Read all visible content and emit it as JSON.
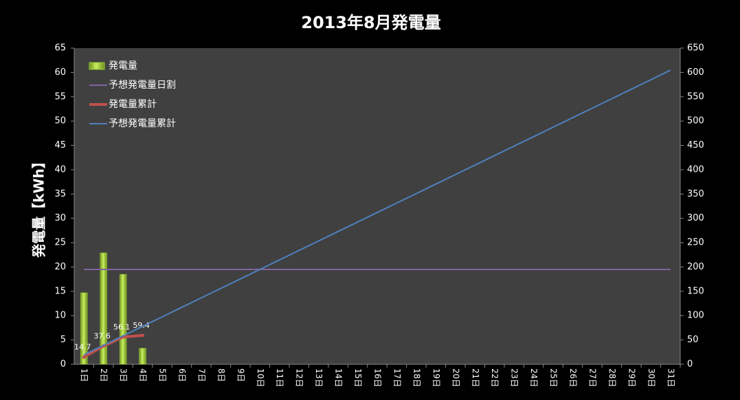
{
  "chart_data": {
    "type": "combo",
    "title": "2013年8月発電量",
    "y_label": "発電量【kWh】",
    "categories": [
      "1日",
      "2日",
      "3日",
      "4日",
      "5日",
      "6日",
      "7日",
      "8日",
      "9日",
      "10日",
      "11日",
      "12日",
      "13日",
      "14日",
      "15日",
      "16日",
      "17日",
      "18日",
      "19日",
      "20日",
      "21日",
      "22日",
      "23日",
      "24日",
      "25日",
      "26日",
      "27日",
      "28日",
      "29日",
      "30日",
      "31日"
    ],
    "series": [
      {
        "name": "発電量",
        "kind": "bar",
        "color": "#9acd32",
        "values": [
          14.7,
          22.9,
          18.5,
          3.3,
          null,
          null,
          null,
          null,
          null,
          null,
          null,
          null,
          null,
          null,
          null,
          null,
          null,
          null,
          null,
          null,
          null,
          null,
          null,
          null,
          null,
          null,
          null,
          null,
          null,
          null,
          null
        ]
      },
      {
        "name": "予想発電量日割",
        "kind": "line",
        "color": "#8064a2",
        "values": [
          19.5,
          19.5,
          19.5,
          19.5,
          19.5,
          19.5,
          19.5,
          19.5,
          19.5,
          19.5,
          19.5,
          19.5,
          19.5,
          19.5,
          19.5,
          19.5,
          19.5,
          19.5,
          19.5,
          19.5,
          19.5,
          19.5,
          19.5,
          19.5,
          19.5,
          19.5,
          19.5,
          19.5,
          19.5,
          19.5,
          19.5
        ]
      },
      {
        "name": "発電量累計",
        "kind": "line",
        "axis": "y2",
        "color": "#c0504d",
        "markers": true,
        "data_labels": true,
        "values": [
          14.7,
          37.6,
          56.1,
          59.4,
          null,
          null,
          null,
          null,
          null,
          null,
          null,
          null,
          null,
          null,
          null,
          null,
          null,
          null,
          null,
          null,
          null,
          null,
          null,
          null,
          null,
          null,
          null,
          null,
          null,
          null,
          null
        ]
      },
      {
        "name": "予想発電量累計",
        "kind": "line",
        "axis": "y2",
        "color": "#4f81bd",
        "values": [
          19.5,
          39,
          58.5,
          78,
          97.5,
          117,
          136.5,
          156,
          175.5,
          195,
          214.5,
          234,
          253.5,
          273,
          292.5,
          312,
          331.5,
          351,
          370.5,
          390,
          409.5,
          429,
          448.5,
          468,
          487.5,
          507,
          526.5,
          546,
          565.5,
          585,
          604.5
        ]
      }
    ],
    "ylim": [
      0,
      65
    ],
    "yticks": [
      0,
      5,
      10,
      15,
      20,
      25,
      30,
      35,
      40,
      45,
      50,
      55,
      60,
      65
    ],
    "y2lim": [
      0,
      650
    ],
    "y2ticks": [
      0,
      50,
      100,
      150,
      200,
      250,
      300,
      350,
      400,
      450,
      500,
      550,
      600,
      650
    ],
    "grid": false,
    "legend": "top-left"
  }
}
